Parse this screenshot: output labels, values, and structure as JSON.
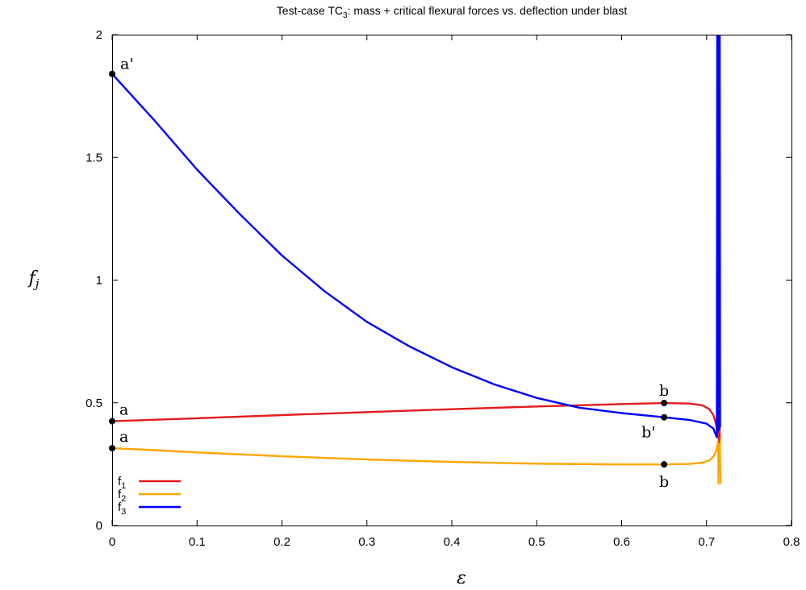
{
  "chart_data": {
    "type": "line",
    "title_main": "Test-case TC",
    "title_sub": "3",
    "title_rest": ": mass + critical flexural forces vs. deflection under blast",
    "xlabel": "ε",
    "ylabel_main": "f",
    "ylabel_sub": "j",
    "xlim": [
      0,
      0.8
    ],
    "ylim": [
      0,
      2
    ],
    "xticks": [
      "0",
      "0.1",
      "0.2",
      "0.3",
      "0.4",
      "0.5",
      "0.6",
      "0.7",
      "0.8"
    ],
    "yticks": [
      "0",
      "0.5",
      "1",
      "1.5",
      "2"
    ],
    "grid": false,
    "legend_position": "bottom-left",
    "series": [
      {
        "name": "f1",
        "name_main": "f",
        "name_sub": "1",
        "color": "#e41a1c",
        "x": [
          0,
          0.1,
          0.2,
          0.3,
          0.4,
          0.5,
          0.6,
          0.65,
          0.68,
          0.695,
          0.703,
          0.708,
          0.711,
          0.713
        ],
        "y": [
          0.425,
          0.437,
          0.45,
          0.462,
          0.474,
          0.485,
          0.495,
          0.499,
          0.497,
          0.49,
          0.475,
          0.45,
          0.415,
          0.38
        ]
      },
      {
        "name": "f2",
        "name_main": "f",
        "name_sub": "2",
        "color": "#ffa500",
        "x": [
          0,
          0.05,
          0.1,
          0.2,
          0.3,
          0.4,
          0.5,
          0.6,
          0.65,
          0.68,
          0.695,
          0.703,
          0.708,
          0.711,
          0.713
        ],
        "y": [
          0.315,
          0.307,
          0.298,
          0.282,
          0.269,
          0.259,
          0.252,
          0.249,
          0.249,
          0.251,
          0.256,
          0.265,
          0.28,
          0.3,
          0.33
        ]
      },
      {
        "name": "f3",
        "name_main": "f",
        "name_sub": "3",
        "color": "#0000ff",
        "x": [
          0,
          0.05,
          0.1,
          0.15,
          0.2,
          0.25,
          0.3,
          0.35,
          0.4,
          0.45,
          0.5,
          0.55,
          0.6,
          0.65,
          0.68,
          0.7,
          0.708,
          0.712
        ],
        "y": [
          1.84,
          1.65,
          1.45,
          1.27,
          1.1,
          0.955,
          0.83,
          0.73,
          0.645,
          0.575,
          0.52,
          0.48,
          0.458,
          0.441,
          0.43,
          0.415,
          0.395,
          0.36
        ]
      }
    ],
    "annotations": [
      {
        "text": "a'",
        "x": 0,
        "y": 1.84
      },
      {
        "text": "a",
        "x": 0,
        "y": 0.425
      },
      {
        "text": "a",
        "x": 0,
        "y": 0.315
      },
      {
        "text": "b",
        "x": 0.65,
        "y": 0.499
      },
      {
        "text": "b'",
        "x": 0.65,
        "y": 0.441
      },
      {
        "text": "b",
        "x": 0.65,
        "y": 0.249
      }
    ]
  }
}
